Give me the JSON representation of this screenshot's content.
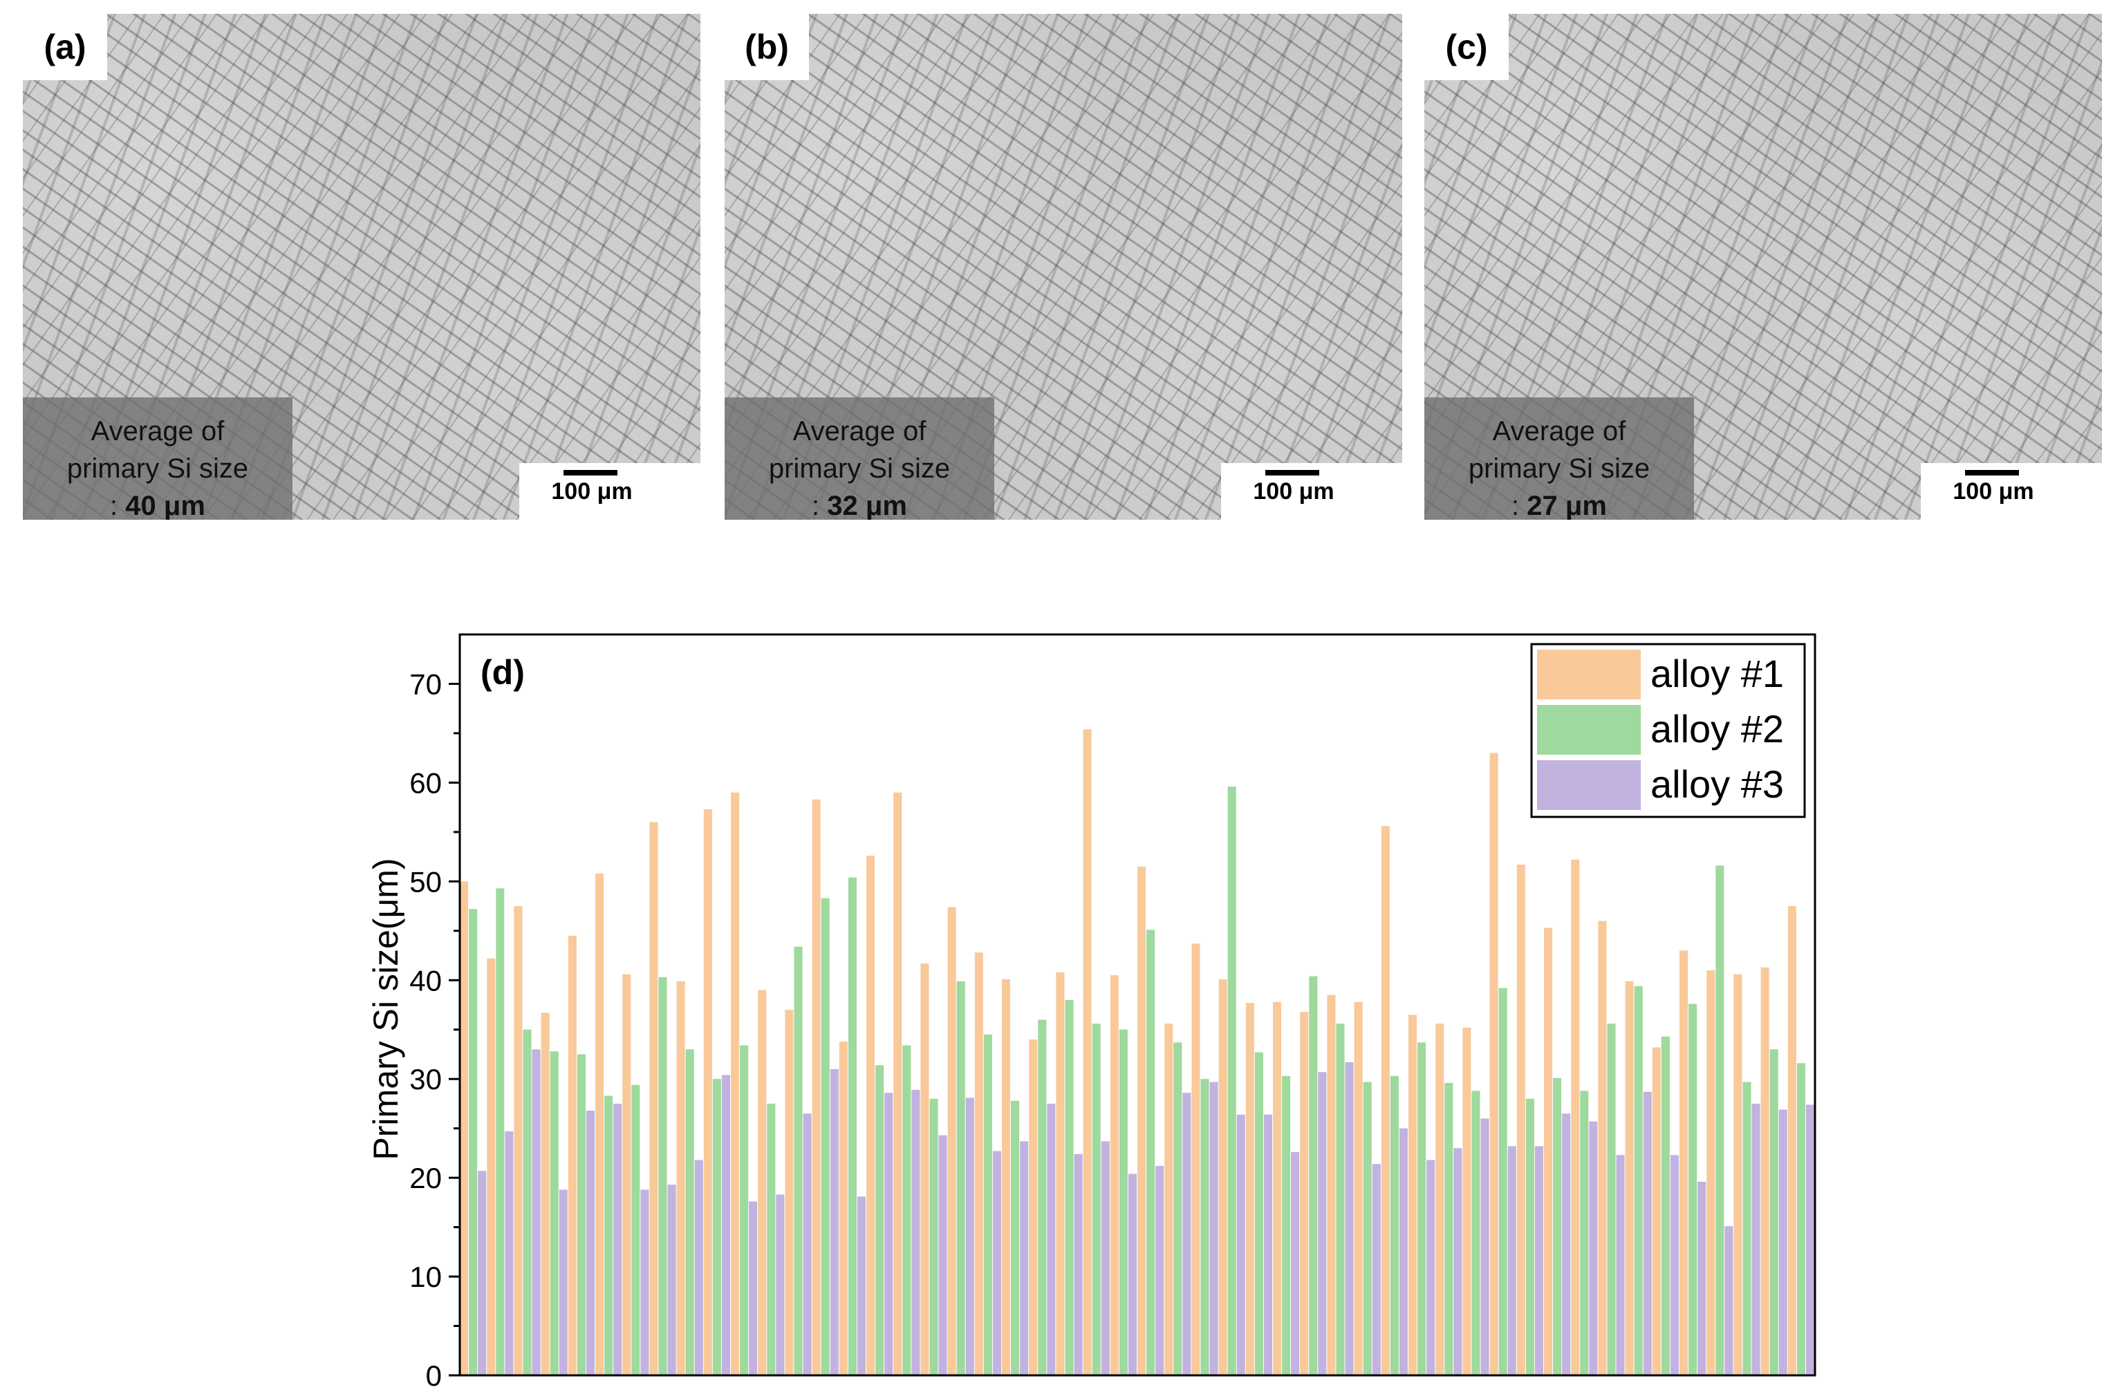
{
  "panels": [
    {
      "label": "(a)",
      "avg_line1": "Average of",
      "avg_line2": "primary Si size",
      "avg_prefix": ": ",
      "avg_value": "40 μm",
      "scale_text": "100 μm"
    },
    {
      "label": "(b)",
      "avg_line1": "Average of",
      "avg_line2": "primary Si size",
      "avg_prefix": ": ",
      "avg_value": "32 μm",
      "scale_text": "100 μm"
    },
    {
      "label": "(c)",
      "avg_line1": "Average of",
      "avg_line2": "primary Si size",
      "avg_prefix": ": ",
      "avg_value": "27 μm",
      "scale_text": "100 μm"
    }
  ],
  "chart_data": {
    "type": "bar",
    "panel_label": "(d)",
    "title": "",
    "xlabel": "",
    "ylabel": "Primary Si size(μm)",
    "ylim": [
      0,
      75
    ],
    "yticks": [
      0,
      10,
      20,
      30,
      40,
      50,
      60,
      70
    ],
    "legend_position": "top-right",
    "series": [
      {
        "name": "alloy #1",
        "color": "#f9c99a",
        "values": [
          50,
          42.2,
          47.5,
          36.7,
          44.5,
          50.8,
          40.6,
          56,
          39.9,
          57.3,
          59,
          39,
          37,
          58.3,
          33.8,
          52.6,
          59,
          41.7,
          47.4,
          42.8,
          40.1,
          34,
          40.8,
          65.4,
          40.5,
          51.5,
          35.6,
          43.7,
          40.1,
          37.7,
          37.8,
          36.8,
          38.5,
          37.8,
          55.6,
          36.5,
          35.6,
          35.2,
          63,
          51.7,
          45.3,
          52.2,
          46,
          39.9,
          33.2,
          43,
          41,
          40.6,
          41.3,
          47.5
        ]
      },
      {
        "name": "alloy #2",
        "color": "#9ed99e",
        "values": [
          47.2,
          49.3,
          35,
          32.8,
          32.5,
          28.3,
          29.4,
          40.3,
          33,
          30,
          33.4,
          27.5,
          43.4,
          48.3,
          50.4,
          31.4,
          33.4,
          28,
          39.9,
          34.5,
          27.8,
          36,
          38,
          35.6,
          35,
          45.1,
          33.7,
          30,
          59.6,
          32.7,
          30.3,
          40.4,
          35.6,
          29.7,
          30.3,
          33.7,
          29.6,
          28.8,
          39.2,
          28,
          30.1,
          28.8,
          35.6,
          39.4,
          34.3,
          37.6,
          51.6,
          29.7,
          33,
          31.6
        ]
      },
      {
        "name": "alloy #3",
        "color": "#c2b2e0",
        "values": [
          20.7,
          24.7,
          33,
          18.8,
          26.8,
          27.5,
          18.8,
          19.3,
          21.8,
          30.4,
          17.6,
          18.3,
          26.5,
          31,
          18.1,
          28.6,
          28.9,
          24.3,
          28.1,
          22.7,
          23.7,
          27.5,
          22.4,
          23.7,
          20.4,
          21.2,
          28.6,
          29.7,
          26.4,
          26.4,
          22.6,
          30.7,
          31.7,
          21.4,
          25,
          21.8,
          23,
          26,
          23.2,
          23.2,
          26.5,
          25.7,
          22.3,
          28.7,
          22.3,
          19.6,
          15.1,
          27.5,
          26.9,
          27.4
        ]
      }
    ]
  }
}
